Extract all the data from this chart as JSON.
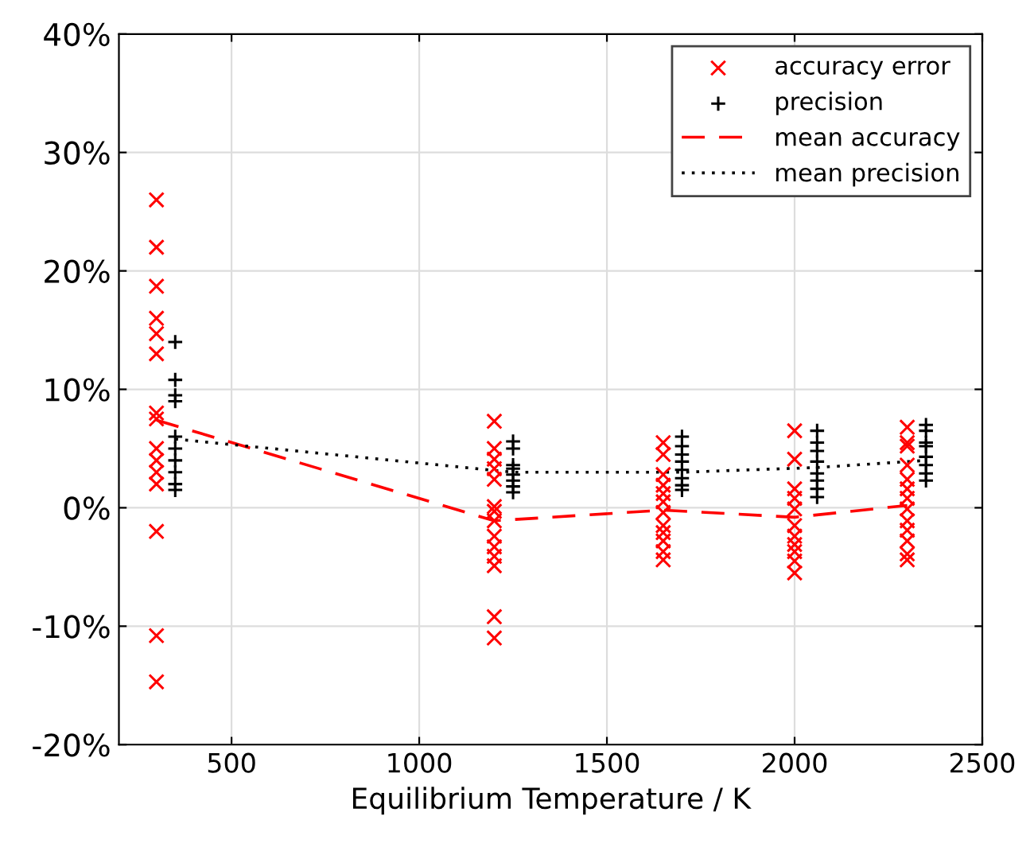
{
  "chart_data": {
    "type": "scatter",
    "xlabel": "Equilibrium Temperature / K",
    "xlim": [
      200,
      2500
    ],
    "xticks": [
      500,
      1000,
      1500,
      2000,
      2500
    ],
    "ylim": [
      -20,
      40
    ],
    "yticks": [
      {
        "value": -20,
        "label": "-20%"
      },
      {
        "value": -10,
        "label": "-10%"
      },
      {
        "value": 0,
        "label": "0%"
      },
      {
        "value": 10,
        "label": "10%"
      },
      {
        "value": 20,
        "label": "20%"
      },
      {
        "value": 30,
        "label": "30%"
      },
      {
        "value": 40,
        "label": "40%"
      }
    ],
    "grid": true,
    "legend": "top right",
    "series": [
      {
        "name": "accuracy error",
        "marker": "cross",
        "color": "#ff0000",
        "x": [
          300,
          300,
          300,
          300,
          300,
          300,
          300,
          300,
          300,
          300,
          300,
          300,
          300,
          300,
          300,
          1200,
          1200,
          1200,
          1200,
          1200,
          1200,
          1200,
          1200,
          1200,
          1200,
          1200,
          1200,
          1200,
          1200,
          1650,
          1650,
          1650,
          1650,
          1650,
          1650,
          1650,
          1650,
          1650,
          1650,
          1650,
          1650,
          2000,
          2000,
          2000,
          2000,
          2000,
          2000,
          2000,
          2000,
          2000,
          2000,
          2000,
          2300,
          2300,
          2300,
          2300,
          2300,
          2300,
          2300,
          2300,
          2300,
          2300,
          2300,
          2300,
          2300
        ],
        "values": [
          26,
          22,
          18.7,
          16,
          14.7,
          13,
          8,
          7.5,
          5,
          4,
          3,
          2,
          -2,
          -10.8,
          -14.7,
          7.3,
          5,
          4.1,
          3.3,
          2.4,
          0.1,
          -0.3,
          -1.1,
          -2.4,
          -3.3,
          -4.1,
          -4.9,
          -9.2,
          -11,
          5.5,
          4.5,
          2.8,
          1.9,
          1.2,
          0.5,
          -0.4,
          -1.5,
          -2.1,
          -2.8,
          -3.7,
          -4.4,
          6.5,
          4.1,
          1.6,
          0.8,
          -0.1,
          -1.5,
          -2.4,
          -3.1,
          -3.7,
          -4.5,
          -5.5,
          6.8,
          5.5,
          5.2,
          3.6,
          2.4,
          1.6,
          0.8,
          -0.1,
          -1.1,
          -1.9,
          -2.8,
          -3.9,
          -4.4
        ]
      },
      {
        "name": "precision",
        "marker": "plus",
        "color": "#000000",
        "x": [
          350,
          350,
          350,
          350,
          350,
          350,
          350,
          350,
          350,
          350,
          1250,
          1250,
          1250,
          1250,
          1250,
          1250,
          1250,
          1250,
          1700,
          1700,
          1700,
          1700,
          1700,
          1700,
          1700,
          1700,
          2060,
          2060,
          2060,
          2060,
          2060,
          2060,
          2060,
          2060,
          2350,
          2350,
          2350,
          2350,
          2350,
          2350,
          2350,
          2350
        ],
        "values": [
          14,
          10.8,
          9.5,
          9,
          6,
          5,
          4,
          3,
          2,
          1.5,
          5.6,
          5,
          3.6,
          3.3,
          2.8,
          2.3,
          1.8,
          1.3,
          6,
          5.2,
          4.5,
          3.9,
          3.2,
          2.5,
          1.9,
          1.5,
          6.5,
          5.5,
          4.8,
          3.9,
          2.9,
          2.3,
          1.6,
          0.9,
          7,
          6.5,
          5.5,
          5.2,
          4.3,
          3.6,
          2.9,
          2.3
        ]
      },
      {
        "name": "mean accuracy",
        "type": "line",
        "line_style": "dashed",
        "color": "#ff0000",
        "x": [
          300,
          1200,
          1650,
          2000,
          2300
        ],
        "values": [
          7.4,
          -1.1,
          -0.2,
          -0.8,
          0.2
        ]
      },
      {
        "name": "mean precision",
        "type": "line",
        "line_style": "dotted",
        "color": "#000000",
        "x": [
          350,
          1250,
          1700,
          2060,
          2350
        ],
        "values": [
          5.8,
          3.0,
          3.0,
          3.4,
          4.0
        ]
      }
    ]
  }
}
